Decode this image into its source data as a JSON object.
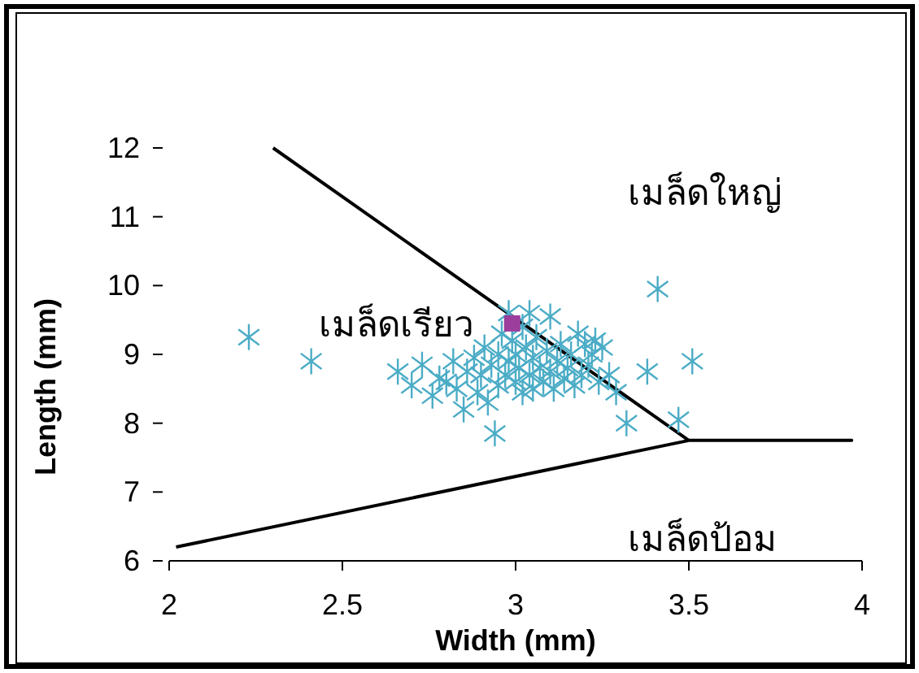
{
  "chart_data": {
    "type": "scatter",
    "xlabel": "Width (mm)",
    "ylabel": "Length (mm)",
    "xlim": [
      2,
      4
    ],
    "ylim": [
      6,
      12
    ],
    "xticks": [
      2,
      2.5,
      3,
      3.5,
      4
    ],
    "yticks": [
      6,
      7,
      8,
      9,
      10,
      11,
      12
    ],
    "annotations": [
      "เมล็ดใหญ่",
      "เมล็ดเรียว",
      "เมล็ดป้อม"
    ],
    "series": [
      {
        "color": "#4bacc6",
        "marker": "cross",
        "x": [
          2.66,
          2.7,
          2.73,
          2.76,
          2.78,
          2.8,
          2.82,
          2.83,
          2.85,
          2.86,
          2.88,
          2.89,
          2.9,
          2.91,
          2.92,
          2.93,
          2.94,
          2.95,
          2.95,
          2.96,
          2.97,
          2.98,
          2.99,
          3.0,
          3.0,
          3.01,
          3.02,
          3.02,
          3.03,
          3.04,
          3.05,
          3.05,
          3.06,
          3.07,
          3.08,
          3.09,
          3.1,
          3.1,
          3.11,
          3.12,
          3.13,
          3.14,
          3.15,
          3.16,
          3.17,
          3.18,
          3.19,
          3.2,
          3.21,
          3.22,
          3.23,
          3.24,
          3.25,
          3.27,
          3.29,
          3.32,
          3.38,
          3.41,
          3.47,
          3.51,
          2.23,
          2.41,
          2.98,
          3.04
        ],
        "values": [
          8.75,
          8.55,
          8.85,
          8.4,
          8.65,
          8.6,
          8.9,
          8.5,
          8.2,
          8.75,
          8.95,
          8.45,
          8.7,
          9.1,
          8.3,
          8.85,
          7.85,
          9.0,
          8.55,
          9.3,
          8.7,
          8.9,
          9.2,
          8.6,
          9.0,
          8.8,
          9.4,
          8.45,
          9.1,
          8.7,
          8.95,
          8.5,
          9.25,
          8.8,
          8.6,
          9.05,
          9.55,
          8.75,
          8.5,
          8.9,
          9.15,
          8.65,
          8.8,
          9.0,
          8.55,
          9.3,
          8.7,
          9.15,
          8.85,
          9.0,
          9.2,
          8.6,
          9.1,
          8.7,
          8.45,
          8.0,
          8.75,
          9.95,
          8.05,
          8.9,
          9.25,
          8.9,
          9.6,
          9.6
        ]
      },
      {
        "type": "scatter",
        "color": "#9b3e9c",
        "marker": "square",
        "x": [
          2.99
        ],
        "values": [
          9.45
        ]
      },
      {
        "type": "line",
        "color": "#000000",
        "marker": "none",
        "x": [
          2.02,
          3.5,
          3.97,
          3.5,
          2.3
        ],
        "values": [
          6.2,
          7.75,
          7.75,
          7.75,
          12
        ]
      }
    ]
  }
}
